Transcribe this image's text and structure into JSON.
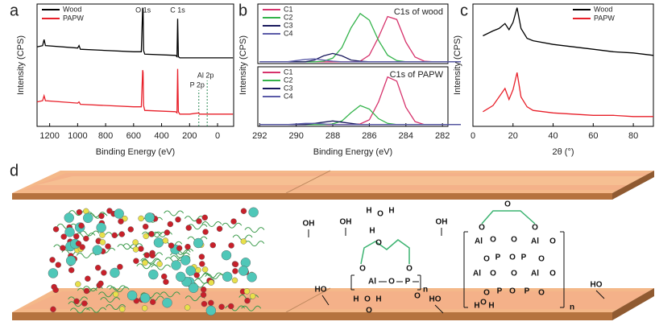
{
  "chart_data": [
    {
      "type": "line",
      "panel_label": "a",
      "xlabel": "Binding Energy (eV)",
      "ylabel": "Intensity (CPS)",
      "x": [
        1290,
        1250,
        1240,
        1230,
        1000,
        990,
        980,
        600,
        545,
        535,
        532,
        529,
        520,
        300,
        290,
        285,
        280,
        270,
        200,
        135,
        130,
        75,
        70,
        0,
        -110
      ],
      "xlim": [
        1290,
        -115
      ],
      "xticks": [
        1200,
        1000,
        800,
        600,
        400,
        200,
        0
      ],
      "ylim": [
        0,
        100
      ],
      "legend": "upper left",
      "series": [
        {
          "name": "Wood",
          "color": "#000000",
          "values": [
            65,
            66,
            71,
            66,
            64,
            66,
            63,
            61,
            61,
            97,
            95,
            62,
            59,
            58,
            57,
            88,
            57,
            56,
            56,
            56,
            56,
            56,
            56,
            56,
            56
          ]
        },
        {
          "name": "PAPW",
          "color": "#e8202a",
          "values": [
            20,
            21,
            25,
            21,
            19,
            20,
            18,
            16,
            16,
            46,
            44,
            17,
            13,
            12,
            11,
            47,
            12,
            10,
            10,
            11,
            10,
            10,
            10,
            10,
            10
          ]
        }
      ],
      "annotations": [
        {
          "text": "O 1s",
          "x": 532
        },
        {
          "text": "C 1s",
          "x": 285
        }
      ],
      "reference_lines": [
        {
          "x": 134,
          "label": "P 2p"
        },
        {
          "x": 74,
          "label": "Al 2p"
        }
      ]
    },
    {
      "type": "line",
      "panel_label": "b",
      "title": "C1s of wood",
      "ylabel": "Intensity (CPS)",
      "x": [
        292,
        291.5,
        291,
        290.5,
        290,
        289.5,
        289,
        288.5,
        288,
        287.5,
        287,
        286.5,
        286,
        285.5,
        285,
        284.5,
        284,
        283.5,
        283,
        282.5,
        282,
        281.5,
        281
      ],
      "xlim": [
        292.1,
        281.7
      ],
      "ylim": [
        0,
        100
      ],
      "legend": "upper left",
      "series": [
        {
          "name": "C1",
          "color": "#d6336c",
          "values": [
            3,
            3,
            3,
            3,
            3,
            3,
            3,
            3,
            3,
            3,
            3,
            4,
            14,
            44,
            79,
            74,
            36,
            11,
            4,
            3,
            3,
            3,
            3
          ]
        },
        {
          "name": "C2",
          "color": "#33b34a",
          "values": [
            3,
            3,
            3,
            3,
            3,
            3,
            3,
            4,
            9,
            27,
            60,
            84,
            73,
            39,
            14,
            5,
            3,
            3,
            3,
            3,
            3,
            3,
            3
          ]
        },
        {
          "name": "C3",
          "color": "#1a1a5e",
          "values": [
            3,
            3,
            3,
            3,
            3,
            3,
            6,
            13,
            17,
            13,
            6,
            4,
            3,
            3,
            3,
            3,
            3,
            3,
            3,
            3,
            3,
            3,
            3
          ]
        },
        {
          "name": "C4",
          "color": "#5b5ba8",
          "values": [
            3,
            3,
            3,
            3,
            5,
            7,
            8,
            6,
            4,
            3,
            3,
            3,
            3,
            3,
            3,
            3,
            3,
            3,
            3,
            3,
            3,
            3,
            3
          ]
        }
      ]
    },
    {
      "type": "line",
      "title": "C1s of PAPW",
      "xlabel": "Binding Energy (eV)",
      "x": [
        292,
        291.5,
        291,
        290.5,
        290,
        289.5,
        289,
        288.5,
        288,
        287.5,
        287,
        286.5,
        286,
        285.5,
        285,
        284.5,
        284,
        283.5,
        283,
        282.5,
        282,
        281.5,
        281
      ],
      "xlim": [
        292.1,
        281.7
      ],
      "xticks": [
        292,
        290,
        288,
        286,
        284,
        282
      ],
      "ylim": [
        0,
        100
      ],
      "legend": "upper left",
      "series": [
        {
          "name": "C1",
          "color": "#d6336c",
          "values": [
            3,
            3,
            3,
            3,
            3,
            3,
            3,
            3,
            3,
            3,
            3,
            4,
            11,
            41,
            83,
            76,
            32,
            8,
            3,
            3,
            3,
            3,
            3
          ]
        },
        {
          "name": "C2",
          "color": "#33b34a",
          "values": [
            3,
            3,
            3,
            3,
            3,
            3,
            3,
            3,
            4,
            9,
            23,
            35,
            29,
            13,
            5,
            3,
            3,
            3,
            3,
            3,
            3,
            3,
            3
          ]
        },
        {
          "name": "C3",
          "color": "#1a1a5e",
          "values": [
            3,
            3,
            3,
            3,
            3,
            3,
            5,
            7,
            9,
            7,
            5,
            3,
            3,
            3,
            3,
            3,
            3,
            3,
            3,
            3,
            3,
            3,
            3
          ]
        },
        {
          "name": "C4",
          "color": "#5b5ba8",
          "values": [
            3,
            3,
            3,
            3,
            4,
            5,
            5,
            4,
            3,
            3,
            3,
            3,
            3,
            3,
            3,
            3,
            3,
            3,
            3,
            3,
            3,
            3,
            3
          ]
        }
      ]
    },
    {
      "type": "line",
      "panel_label": "c",
      "xlabel": "2θ (°)",
      "ylabel": "Intensity (CPS)",
      "x": [
        5,
        10,
        13,
        16,
        18,
        20,
        22,
        24,
        27,
        30,
        40,
        50,
        60,
        70,
        80,
        90
      ],
      "xlim": [
        0,
        90
      ],
      "xticks": [
        0,
        20,
        40,
        60,
        80
      ],
      "ylim": [
        0,
        100
      ],
      "legend": "upper right",
      "series": [
        {
          "name": "Wood",
          "color": "#000000",
          "values": [
            74,
            78,
            80,
            84,
            79,
            85,
            97,
            80,
            72,
            70,
            67,
            65,
            63,
            61,
            60,
            58
          ]
        },
        {
          "name": "PAPW",
          "color": "#e8202a",
          "values": [
            12,
            17,
            24,
            31,
            22,
            30,
            44,
            24,
            16,
            13,
            11,
            10,
            9,
            9,
            8,
            8
          ]
        }
      ]
    }
  ],
  "diagram": {
    "panel_label": "d",
    "labels": [
      "OH",
      "OH",
      "H",
      "O",
      "H",
      "H",
      "O",
      "OH",
      "O",
      "O",
      "Al",
      "O",
      "P",
      "n",
      "O",
      "HO",
      "H",
      "O",
      "H",
      "O",
      "HO",
      "O",
      "O",
      "O",
      "Al",
      "O",
      "O",
      "Al",
      "O",
      "P",
      "O",
      "P",
      "O",
      "O",
      "Al",
      "O",
      "O",
      "Al",
      "O",
      "P",
      "O",
      "P",
      "O",
      "O",
      "n",
      "H",
      "O",
      "H",
      "HO"
    ]
  }
}
